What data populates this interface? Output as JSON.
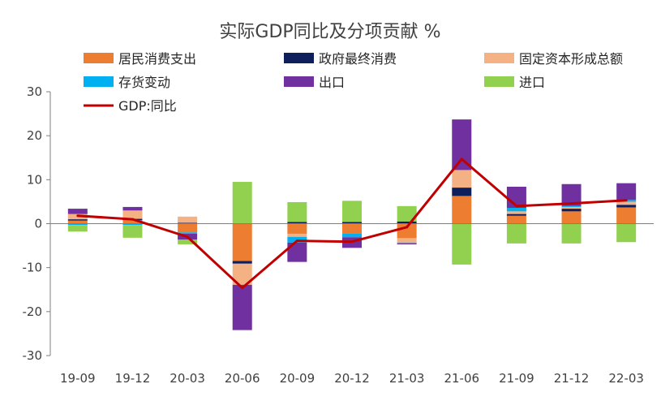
{
  "chart_data": {
    "type": "bar",
    "title": "实际GDP同比及分项贡献 %",
    "categories": [
      "19-09",
      "19-12",
      "20-03",
      "20-06",
      "20-09",
      "20-12",
      "21-03",
      "21-06",
      "21-09",
      "21-12",
      "22-03"
    ],
    "ylim": [
      -30,
      30
    ],
    "yticks": [
      30,
      20,
      10,
      0,
      -10,
      -20,
      -30
    ],
    "stacked": true,
    "grid": false,
    "legend_position": "top",
    "series": [
      {
        "name": "居民消费支出",
        "kind": "bar",
        "color": "#ED7D31",
        "values": [
          0.7,
          0.8,
          -2.0,
          -8.5,
          -2.3,
          -2.3,
          -3.3,
          6.3,
          1.8,
          2.8,
          3.7
        ]
      },
      {
        "name": "政府最终消费",
        "kind": "bar",
        "color": "#0E1F5B",
        "values": [
          0.3,
          0.3,
          0.2,
          -0.6,
          0.4,
          0.4,
          0.5,
          1.9,
          0.4,
          0.6,
          0.6
        ]
      },
      {
        "name": "固定资本形成总额",
        "kind": "bar",
        "color": "#F4B183",
        "values": [
          1.2,
          1.9,
          1.4,
          -4.8,
          -0.7,
          0.0,
          -1.0,
          4.0,
          0.6,
          0.4,
          0.7
        ]
      },
      {
        "name": "存货变动",
        "kind": "bar",
        "color": "#00B0F0",
        "values": [
          -0.3,
          -0.3,
          -0.3,
          0.0,
          -1.3,
          -0.8,
          -0.2,
          0.0,
          0.8,
          0.2,
          0.4
        ]
      },
      {
        "name": "出口",
        "kind": "bar",
        "color": "#7030A0",
        "values": [
          1.2,
          0.8,
          -1.3,
          -10.3,
          -4.4,
          -2.4,
          -0.2,
          11.5,
          4.8,
          5.0,
          3.8
        ]
      },
      {
        "name": "进口",
        "kind": "bar",
        "color": "#92D050",
        "values": [
          -1.5,
          -2.9,
          -1.1,
          9.5,
          4.5,
          4.8,
          3.5,
          -9.3,
          -4.5,
          -4.5,
          -4.2
        ]
      },
      {
        "name": "GDP:同比",
        "kind": "line",
        "color": "#C00000",
        "values": [
          1.8,
          1.0,
          -3.0,
          -14.6,
          -3.9,
          -4.1,
          -0.8,
          14.7,
          4.0,
          4.6,
          5.3
        ]
      }
    ]
  }
}
